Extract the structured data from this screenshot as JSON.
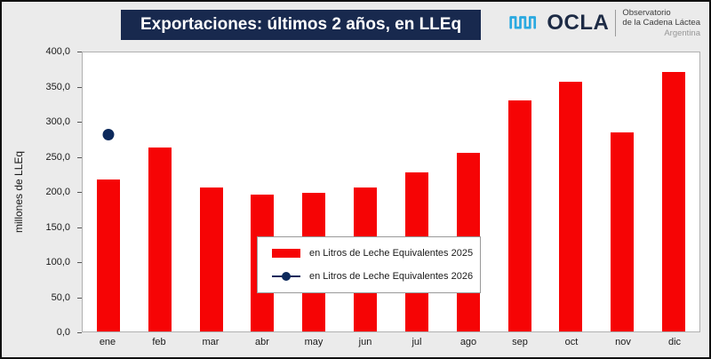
{
  "header": {
    "title": "Exportaciones: últimos 2 años, en LLEq",
    "logo": {
      "brand": "OCLA",
      "org_line1": "Observatorio",
      "org_line2": "de la Cadena Láctea",
      "org_line3": "Argentina",
      "icon_color": "#2aa9e0"
    }
  },
  "chart_data": {
    "type": "bar",
    "title": "Exportaciones: últimos 2 años, en LLEq",
    "xlabel": "",
    "ylabel": "millones de LLEq",
    "ylim": [
      0,
      400
    ],
    "ytick_step": 50,
    "ytick_labels": [
      "0,0",
      "50,0",
      "100,0",
      "150,0",
      "200,0",
      "250,0",
      "300,0",
      "350,0",
      "400,0"
    ],
    "categories": [
      "ene",
      "feb",
      "mar",
      "abr",
      "may",
      "jun",
      "jul",
      "ago",
      "sep",
      "oct",
      "nov",
      "dic"
    ],
    "series": [
      {
        "name": "en Litros de Leche Equivalentes 2025",
        "type": "bar",
        "color": "#f60405",
        "values": [
          218,
          264,
          207,
          196,
          199,
          206,
          228,
          256,
          331,
          358,
          285,
          372
        ]
      },
      {
        "name": "en Litros de Leche Equivalentes 2026",
        "type": "point",
        "color": "#0d2a5c",
        "values": [
          281,
          null,
          null,
          null,
          null,
          null,
          null,
          null,
          null,
          null,
          null,
          null
        ]
      }
    ],
    "grid": false,
    "legend_position": "center"
  }
}
